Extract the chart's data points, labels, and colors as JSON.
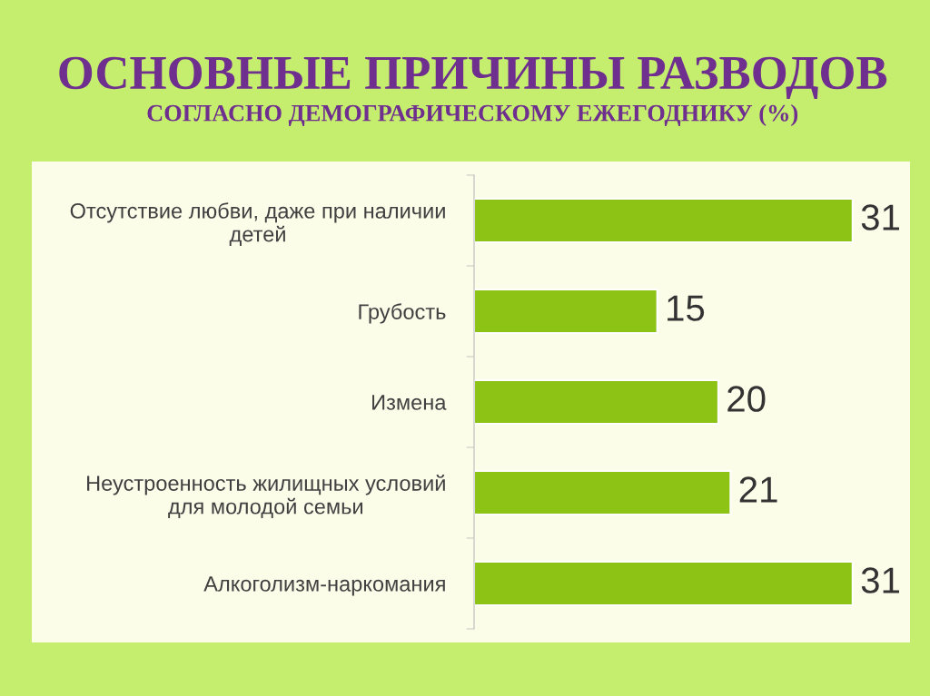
{
  "chart_data": {
    "type": "bar",
    "orientation": "horizontal",
    "title": "ОСНОВНЫЕ ПРИЧИНЫ РАЗВОДОВ",
    "subtitle": "СОГЛАСНО ДЕМОГРАФИЧЕСКОМУ ЕЖЕГОДНИКУ (%)",
    "categories": [
      "Отсутствие любви, даже при наличии\nдетей",
      "Грубость",
      "Измена",
      "Неустроенность жилищных условий\nдля молодой семьи",
      "Алкоголизм-наркомания"
    ],
    "values": [
      31,
      15,
      20,
      21,
      31
    ],
    "color": "#8cc314",
    "data_labels": true,
    "grid": false,
    "legend": false
  }
}
